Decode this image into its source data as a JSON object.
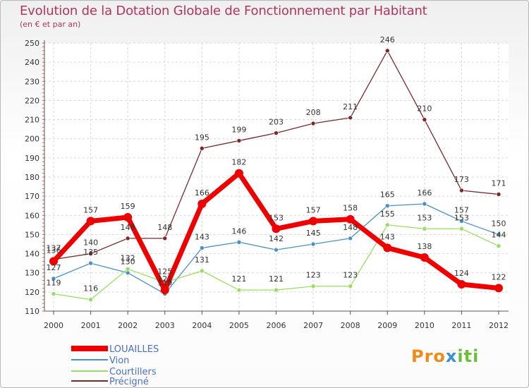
{
  "header": {
    "title": "Evolution de la Dotation Globale de Fonctionnement par Habitant",
    "subtitle": "(en € et par an)"
  },
  "logo": {
    "part1": "Pro",
    "part2": "x",
    "part3": "iti"
  },
  "chart_data": {
    "type": "line",
    "title": "Evolution de la Dotation Globale de Fonctionnement par Habitant",
    "subtitle": "(en € et par an)",
    "x": [
      "2000",
      "2001",
      "2002",
      "2003",
      "2004",
      "2005",
      "2006",
      "2007",
      "2008",
      "2009",
      "2010",
      "2011",
      "2012"
    ],
    "ylim": [
      110,
      250
    ],
    "yticks": [
      110,
      120,
      130,
      140,
      150,
      160,
      170,
      180,
      190,
      200,
      210,
      220,
      230,
      240,
      250
    ],
    "grid": true,
    "legend_position": "bottom-left",
    "series": [
      {
        "name": "LOUAILLES",
        "color": "#ee0000",
        "values": [
          136,
          157,
          159,
          121,
          166,
          182,
          153,
          157,
          158,
          143,
          138,
          124,
          122
        ]
      },
      {
        "name": "Vion",
        "color": "#4a90c8",
        "values": [
          127,
          135,
          130,
          119,
          143,
          146,
          142,
          145,
          148,
          165,
          166,
          157,
          150
        ]
      },
      {
        "name": "Courtillers",
        "color": "#99dd66",
        "values": [
          119,
          116,
          132,
          125,
          131,
          121,
          121,
          123,
          123,
          155,
          153,
          153,
          144
        ]
      },
      {
        "name": "Précigné",
        "color": "#7a2a2a",
        "values": [
          137,
          140,
          148,
          148,
          195,
          199,
          203,
          208,
          211,
          246,
          210,
          173,
          171
        ]
      }
    ]
  }
}
